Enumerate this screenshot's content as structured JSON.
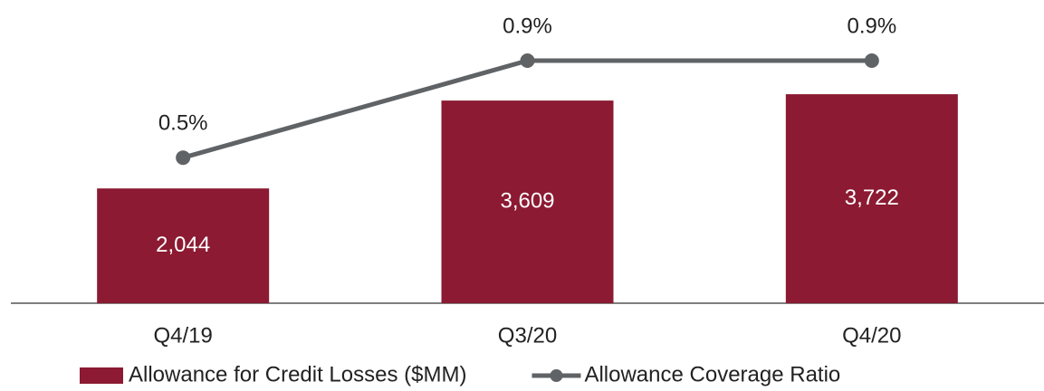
{
  "chart_data": {
    "type": "bar_line",
    "categories": [
      "Q4/19",
      "Q3/20",
      "Q4/20"
    ],
    "series": [
      {
        "name": "Allowance for Credit Losses ($MM)",
        "type": "bar",
        "color": "#8b1a32",
        "values": [
          2044,
          3609,
          3722
        ],
        "value_labels": [
          "2,044",
          "3,609",
          "3,722"
        ]
      },
      {
        "name": "Allowance Coverage Ratio",
        "type": "line",
        "axis": "y2",
        "color": "#5f6366",
        "values": [
          0.5,
          0.9,
          0.9
        ],
        "value_labels": [
          "0.5%",
          "0.9%",
          "0.9%"
        ]
      }
    ],
    "ylim": [
      0,
      5400
    ],
    "y2lim": [
      -0.1,
      1.15
    ]
  }
}
